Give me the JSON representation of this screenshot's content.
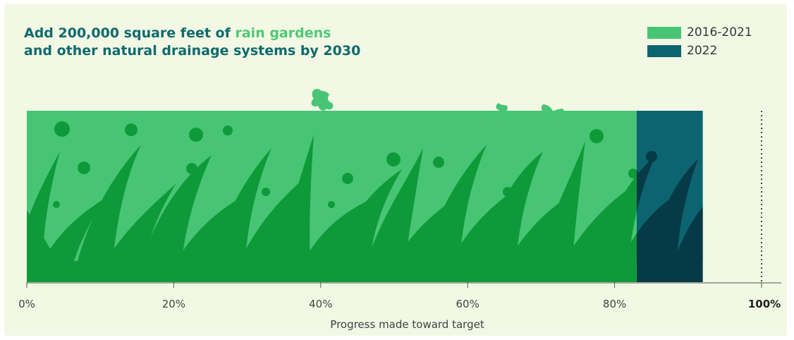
{
  "header": {
    "title_part1": "Add 200,000 square feet of ",
    "title_highlight": "rain gardens",
    "title_line2": "and other natural drainage systems by 2030"
  },
  "legend": [
    {
      "label": "2016-2021",
      "color": "#47c575"
    },
    {
      "label": "2022",
      "color": "#0c6470"
    }
  ],
  "chart_data": {
    "type": "bar",
    "orientation": "horizontal",
    "stacked": true,
    "series": [
      {
        "name": "2016-2021",
        "values": [
          83
        ],
        "color": "#47c575"
      },
      {
        "name": "2022",
        "values": [
          9
        ],
        "color": "#0c6470"
      }
    ],
    "xlim": [
      0,
      100
    ],
    "xticks": [
      0,
      20,
      40,
      60,
      80,
      100
    ],
    "xtick_labels": [
      "0%",
      "20%",
      "40%",
      "60%",
      "80%",
      "100%"
    ],
    "xlabel": "Progress made toward target",
    "target_line": 100
  }
}
